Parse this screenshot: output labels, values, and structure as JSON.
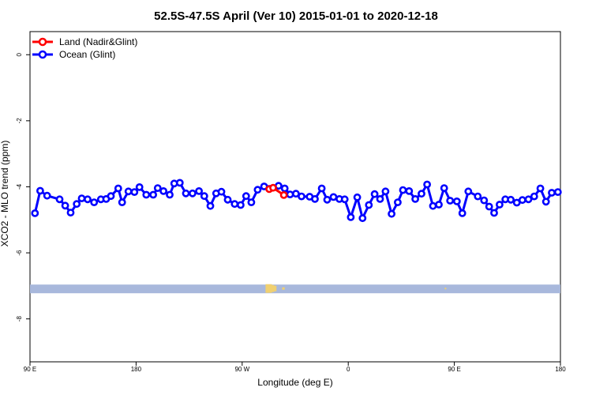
{
  "chart_data": {
    "type": "line",
    "title": "52.5S-47.5S April (Ver 10)   2015-01-01 to 2020-12-18",
    "xlabel": "Longitude (deg E)",
    "ylabel": "XCO2 - MLO trend (ppm)",
    "xlim": [
      90,
      450
    ],
    "ylim": [
      -9.3,
      0.7
    ],
    "x_ticks": [
      {
        "value": 90,
        "label": "90 E"
      },
      {
        "value": 162,
        "label": "180"
      },
      {
        "value": 234,
        "label": "90 W"
      },
      {
        "value": 306,
        "label": "0"
      },
      {
        "value": 378,
        "label": "90 E"
      },
      {
        "value": 450,
        "label": "180"
      }
    ],
    "y_ticks": [
      {
        "value": 0,
        "label": "0"
      },
      {
        "value": -2,
        "label": "-2"
      },
      {
        "value": -4,
        "label": "-4"
      },
      {
        "value": -6,
        "label": "-6"
      },
      {
        "value": -8,
        "label": "-8"
      }
    ],
    "legend": {
      "position": "top-left",
      "entries": [
        {
          "label": "Land (Nadir&Glint)",
          "color": "#ff0000"
        },
        {
          "label": "Ocean (Glint)",
          "color": "#0000ff"
        }
      ]
    },
    "series": [
      {
        "name": "Land (Nadir&Glint)",
        "color": "#ff0000",
        "x": [
          252.4,
          255.0,
          262.3
        ],
        "y": [
          -4.07,
          -4.03,
          -4.25
        ]
      },
      {
        "name": "Ocean (Glint)",
        "color": "#0000ff",
        "x": [
          93.4,
          96.9,
          101.6,
          110.1,
          113.9,
          117.6,
          121.7,
          125.1,
          129.1,
          133.5,
          138.1,
          141.7,
          144.9,
          149.9,
          152.5,
          156.8,
          160.9,
          164.3,
          168.9,
          173.6,
          176.7,
          180.6,
          184.8,
          187.9,
          191.7,
          195.8,
          200.3,
          204.7,
          208.3,
          212.4,
          216.3,
          219.9,
          224.2,
          228.9,
          233.0,
          236.7,
          240.2,
          244.5,
          248.9,
          258.7,
          262.9,
          266.5,
          270.5,
          274.3,
          279.8,
          283.4,
          288.0,
          291.7,
          296.0,
          300.0,
          303.6,
          307.7,
          312.1,
          315.7,
          320.0,
          323.9,
          327.6,
          331.3,
          335.4,
          339.6,
          343.1,
          347.3,
          351.5,
          355.7,
          359.5,
          363.5,
          367.5,
          371.1,
          375.1,
          379.7,
          383.4,
          387.5,
          393.9,
          398.2,
          401.6,
          405.0,
          408.7,
          412.6,
          416.3,
          420.4,
          424.2,
          428.3,
          432.2,
          436.4,
          440.2,
          444.1,
          448.3
        ],
        "y": [
          -4.8,
          -4.12,
          -4.27,
          -4.38,
          -4.57,
          -4.78,
          -4.52,
          -4.35,
          -4.38,
          -4.47,
          -4.38,
          -4.37,
          -4.28,
          -4.05,
          -4.47,
          -4.14,
          -4.16,
          -4.01,
          -4.24,
          -4.24,
          -4.04,
          -4.13,
          -4.24,
          -3.9,
          -3.88,
          -4.2,
          -4.2,
          -4.13,
          -4.28,
          -4.58,
          -4.2,
          -4.15,
          -4.39,
          -4.52,
          -4.55,
          -4.28,
          -4.47,
          -4.09,
          -3.99,
          -3.97,
          -4.05,
          -4.23,
          -4.21,
          -4.29,
          -4.3,
          -4.37,
          -4.05,
          -4.39,
          -4.31,
          -4.37,
          -4.38,
          -4.92,
          -4.32,
          -4.95,
          -4.55,
          -4.22,
          -4.37,
          -4.14,
          -4.82,
          -4.47,
          -4.1,
          -4.13,
          -4.37,
          -4.21,
          -3.93,
          -4.58,
          -4.54,
          -4.04,
          -4.42,
          -4.44,
          -4.8,
          -4.14,
          -4.29,
          -4.41,
          -4.6,
          -4.79,
          -4.54,
          -4.38,
          -4.39,
          -4.48,
          -4.4,
          -4.38,
          -4.29,
          -4.05,
          -4.45,
          -4.18,
          -4.16
        ]
      }
    ],
    "strip": {
      "y": -7.08,
      "base_color": "#a8b8dc",
      "land_color": "#f0d070"
    }
  }
}
